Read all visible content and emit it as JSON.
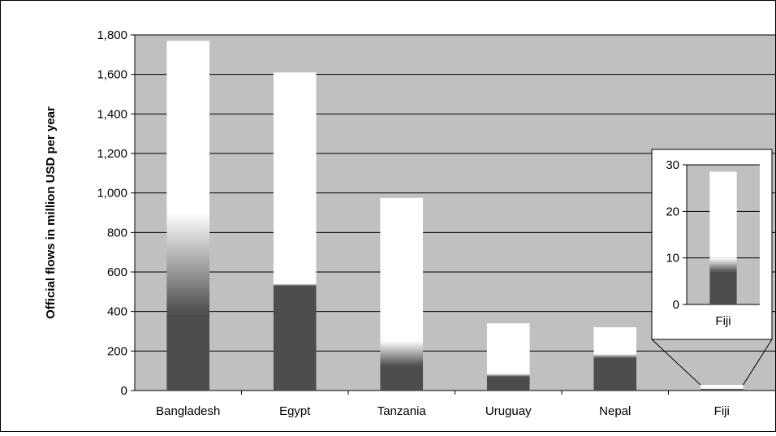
{
  "colors": {
    "page_background": "#ffffff",
    "plot_background": "#c0c0c0",
    "grid_line": "#000000",
    "bar_dark": "#4d4d4d",
    "bar_light": "#ffffff",
    "frame": "#000000"
  },
  "chart_data": [
    {
      "type": "bar",
      "stacked": true,
      "title": "",
      "xlabel": "",
      "ylabel": "Official flows in million USD per year",
      "categories": [
        "Bangladesh",
        "Egypt",
        "Tanzania",
        "Uruguay",
        "Nepal",
        "Fiji"
      ],
      "series": [
        {
          "fill": "dark",
          "values": [
            390,
            530,
            125,
            70,
            165,
            7
          ]
        },
        {
          "fill": "gradient",
          "values": [
            510,
            10,
            125,
            15,
            20,
            3
          ]
        },
        {
          "fill": "white",
          "values": [
            870,
            1070,
            725,
            255,
            135,
            18.5
          ]
        }
      ],
      "ylim": [
        0,
        1800
      ],
      "yticks": [
        0,
        200,
        400,
        600,
        800,
        1000,
        1200,
        1400,
        1600,
        1800
      ],
      "ytick_labels": [
        "0",
        "200",
        "400",
        "600",
        "800",
        "1,000",
        "1,200",
        "1,400",
        "1,600",
        "1,800"
      ],
      "grid": true,
      "legend": "none"
    },
    {
      "type": "bar",
      "stacked": true,
      "inset_of": "Fiji",
      "title": "",
      "xlabel": "",
      "ylabel": "",
      "categories": [
        "Fiji"
      ],
      "series": [
        {
          "fill": "dark",
          "values": [
            7
          ]
        },
        {
          "fill": "gradient",
          "values": [
            3
          ]
        },
        {
          "fill": "white",
          "values": [
            18.5
          ]
        }
      ],
      "ylim": [
        0,
        30
      ],
      "yticks": [
        0,
        10,
        20,
        30
      ],
      "ytick_labels": [
        "0",
        "10",
        "20",
        "30"
      ],
      "grid": true,
      "legend": "none"
    }
  ]
}
